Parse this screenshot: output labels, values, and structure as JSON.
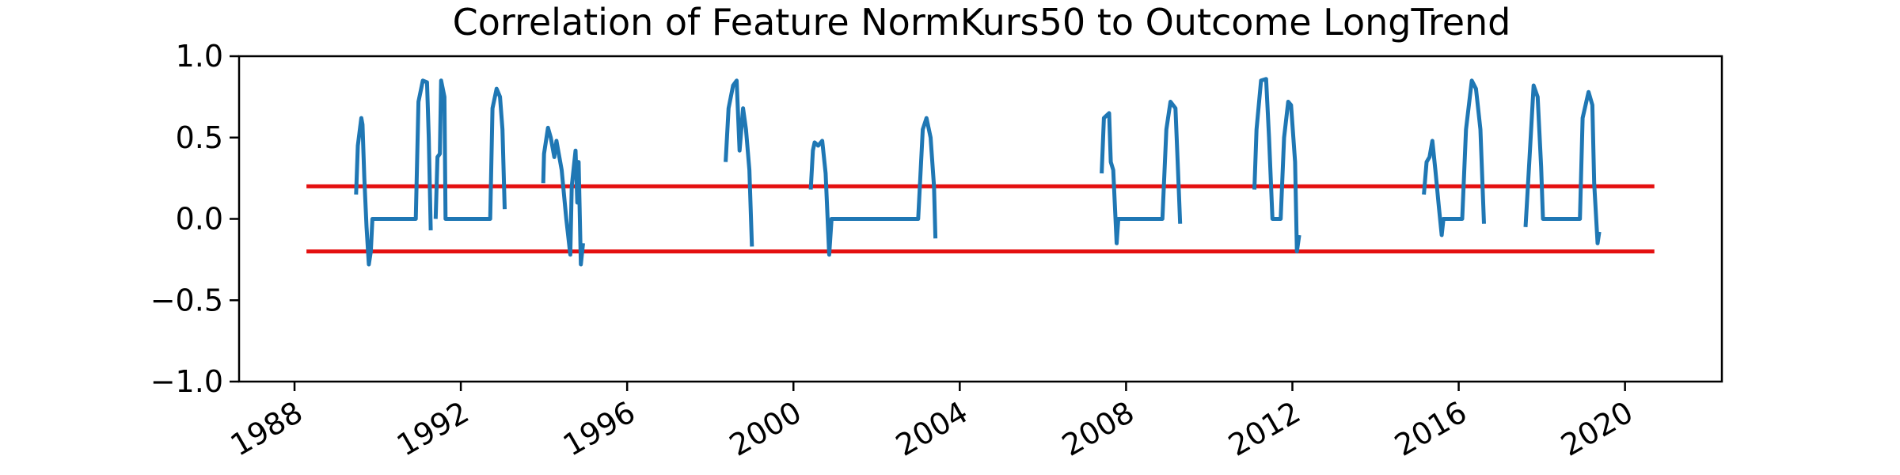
{
  "chart_data": {
    "type": "line",
    "title": "Correlation of Feature NormKurs50 to Outcome LongTrend",
    "xlabel": "",
    "ylabel": "",
    "x_axis_type": "date",
    "xlim": [
      "1986-09-01",
      "2022-05-01"
    ],
    "ylim": [
      -1.0,
      1.0
    ],
    "x_ticks": [
      "1988",
      "1992",
      "1996",
      "2000",
      "2004",
      "2008",
      "2012",
      "2016",
      "2020"
    ],
    "y_ticks": [
      "−1.0",
      "−0.5",
      "0.0",
      "0.5",
      "1.0"
    ],
    "x_tick_rotation": "30deg",
    "grid": false,
    "legend": "none",
    "series": [
      {
        "color": "#1f77b4",
        "segments": [
          [
            [
              "1989-06-25",
              0.15
            ],
            [
              "1989-07-10",
              0.45
            ],
            [
              "1989-08-10",
              0.62
            ],
            [
              "1989-08-20",
              0.58
            ],
            [
              "1989-09-05",
              0.25
            ],
            [
              "1989-09-25",
              -0.05
            ],
            [
              "1989-10-15",
              -0.28
            ],
            [
              "1989-11-01",
              -0.2
            ],
            [
              "1989-11-15",
              0.0
            ],
            [
              "1990-12-01",
              0.0
            ],
            [
              "1990-12-25",
              0.72
            ],
            [
              "1991-02-01",
              0.85
            ],
            [
              "1991-03-10",
              0.84
            ],
            [
              "1991-03-25",
              0.5
            ],
            [
              "1991-04-12",
              -0.07
            ]
          ],
          [
            [
              "1991-05-25",
              0.0
            ],
            [
              "1991-06-10",
              0.38
            ],
            [
              "1991-07-01",
              0.4
            ],
            [
              "1991-07-12",
              0.85
            ],
            [
              "1991-08-10",
              0.75
            ],
            [
              "1991-08-20",
              0.0
            ],
            [
              "1992-09-15",
              0.0
            ],
            [
              "1992-10-05",
              0.68
            ],
            [
              "1992-11-10",
              0.8
            ],
            [
              "1992-12-10",
              0.75
            ],
            [
              "1993-01-01",
              0.55
            ],
            [
              "1993-01-20",
              0.06
            ]
          ],
          [
            [
              "1993-12-25",
              0.22
            ],
            [
              "1994-01-01",
              0.4
            ],
            [
              "1994-02-05",
              0.56
            ],
            [
              "1994-03-01",
              0.5
            ],
            [
              "1994-04-01",
              0.38
            ],
            [
              "1994-04-20",
              0.48
            ],
            [
              "1994-06-05",
              0.3
            ],
            [
              "1994-07-15",
              0.0
            ],
            [
              "1994-08-20",
              -0.22
            ],
            [
              "1994-09-01",
              0.2
            ],
            [
              "1994-10-05",
              0.42
            ],
            [
              "1994-10-20",
              0.1
            ],
            [
              "1994-11-01",
              0.35
            ],
            [
              "1994-11-20",
              -0.28
            ],
            [
              "1994-12-10",
              -0.15
            ]
          ],
          [
            [
              "1998-05-15",
              0.35
            ],
            [
              "1998-06-10",
              0.68
            ],
            [
              "1998-07-20",
              0.82
            ],
            [
              "1998-08-20",
              0.85
            ],
            [
              "1998-09-15",
              0.42
            ],
            [
              "1998-10-15",
              0.68
            ],
            [
              "1998-11-10",
              0.55
            ],
            [
              "1998-12-10",
              0.3
            ],
            [
              "1999-01-01",
              -0.17
            ]
          ],
          [
            [
              "2000-06-01",
              0.18
            ],
            [
              "2000-06-20",
              0.42
            ],
            [
              "2000-07-05",
              0.47
            ],
            [
              "2000-08-05",
              0.45
            ],
            [
              "2000-09-10",
              0.48
            ],
            [
              "2000-10-10",
              0.28
            ],
            [
              "2000-11-10",
              -0.22
            ],
            [
              "2000-12-01",
              0.0
            ],
            [
              "2003-01-01",
              0.0
            ],
            [
              "2003-02-10",
              0.55
            ],
            [
              "2003-03-15",
              0.62
            ],
            [
              "2003-04-20",
              0.5
            ],
            [
              "2003-05-20",
              0.2
            ],
            [
              "2003-06-01",
              -0.12
            ]
          ],
          [
            [
              "2007-06-01",
              0.28
            ],
            [
              "2007-06-20",
              0.62
            ],
            [
              "2007-08-05",
              0.65
            ],
            [
              "2007-08-20",
              0.35
            ],
            [
              "2007-09-10",
              0.3
            ],
            [
              "2007-10-10",
              -0.15
            ],
            [
              "2007-10-25",
              0.0
            ],
            [
              "2008-11-15",
              0.0
            ],
            [
              "2008-12-20",
              0.55
            ],
            [
              "2009-01-25",
              0.72
            ],
            [
              "2009-03-10",
              0.68
            ],
            [
              "2009-04-01",
              0.3
            ],
            [
              "2009-04-20",
              -0.03
            ]
          ],
          [
            [
              "2011-02-01",
              0.18
            ],
            [
              "2011-02-20",
              0.55
            ],
            [
              "2011-04-01",
              0.85
            ],
            [
              "2011-05-15",
              0.86
            ],
            [
              "2011-06-10",
              0.5
            ],
            [
              "2011-07-10",
              0.0
            ],
            [
              "2011-09-20",
              0.0
            ],
            [
              "2011-10-20",
              0.5
            ],
            [
              "2011-11-25",
              0.72
            ],
            [
              "2011-12-20",
              0.7
            ],
            [
              "2012-01-25",
              0.35
            ],
            [
              "2012-02-10",
              -0.2
            ],
            [
              "2012-03-01",
              -0.1
            ]
          ],
          [
            [
              "2015-03-01",
              0.15
            ],
            [
              "2015-03-25",
              0.35
            ],
            [
              "2015-04-20",
              0.38
            ],
            [
              "2015-05-15",
              0.48
            ],
            [
              "2015-06-10",
              0.3
            ],
            [
              "2015-07-10",
              0.08
            ],
            [
              "2015-08-05",
              -0.1
            ],
            [
              "2015-08-20",
              0.0
            ],
            [
              "2016-02-01",
              0.0
            ],
            [
              "2016-03-05",
              0.55
            ],
            [
              "2016-04-25",
              0.85
            ],
            [
              "2016-06-01",
              0.8
            ],
            [
              "2016-07-10",
              0.55
            ],
            [
              "2016-08-10",
              -0.03
            ]
          ],
          [
            [
              "2017-08-10",
              -0.05
            ],
            [
              "2017-09-15",
              0.38
            ],
            [
              "2017-10-20",
              0.82
            ],
            [
              "2017-11-25",
              0.75
            ],
            [
              "2017-12-25",
              0.32
            ],
            [
              "2018-01-10",
              0.0
            ],
            [
              "2018-12-01",
              0.0
            ],
            [
              "2018-12-25",
              0.62
            ],
            [
              "2019-02-15",
              0.78
            ],
            [
              "2019-03-20",
              0.7
            ],
            [
              "2019-04-05",
              0.22
            ],
            [
              "2019-05-05",
              -0.15
            ],
            [
              "2019-05-20",
              -0.08
            ]
          ]
        ]
      }
    ],
    "reference_lines": [
      {
        "y": 0.2,
        "color": "#e41010"
      },
      {
        "y": -0.2,
        "color": "#e41010"
      }
    ],
    "reference_x_range": [
      "1988-04-15",
      "2020-09-15"
    ]
  }
}
